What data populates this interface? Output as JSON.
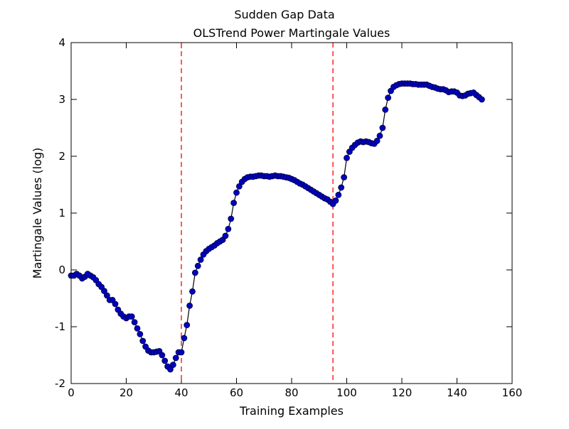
{
  "chart_data": {
    "type": "line",
    "title": "Sudden Gap Data",
    "subtitle": "OLSTrend Power Martingale Values",
    "x_label": "Training Examples",
    "y_label": "Martingale Values (log)",
    "xlim": [
      0,
      160
    ],
    "xticks": [
      0,
      20,
      40,
      60,
      80,
      100,
      120,
      140,
      160
    ],
    "ylim": [
      -2,
      4
    ],
    "yticks": [
      -2,
      -1,
      0,
      1,
      2,
      3,
      4
    ],
    "x": [
      0,
      1,
      2,
      3,
      4,
      5,
      6,
      7,
      8,
      9,
      10,
      11,
      12,
      13,
      14,
      15,
      16,
      17,
      18,
      19,
      20,
      21,
      22,
      23,
      24,
      25,
      26,
      27,
      28,
      29,
      30,
      31,
      32,
      33,
      34,
      35,
      36,
      37,
      38,
      39,
      40,
      41,
      42,
      43,
      44,
      45,
      46,
      47,
      48,
      49,
      50,
      51,
      52,
      53,
      54,
      55,
      56,
      57,
      58,
      59,
      60,
      61,
      62,
      63,
      64,
      65,
      66,
      67,
      68,
      69,
      70,
      71,
      72,
      73,
      74,
      75,
      76,
      77,
      78,
      79,
      80,
      81,
      82,
      83,
      84,
      85,
      86,
      87,
      88,
      89,
      90,
      91,
      92,
      93,
      94,
      95,
      96,
      97,
      98,
      99,
      100,
      101,
      102,
      103,
      104,
      105,
      106,
      107,
      108,
      109,
      110,
      111,
      112,
      113,
      114,
      115,
      116,
      117,
      118,
      119,
      120,
      121,
      122,
      123,
      124,
      125,
      126,
      127,
      128,
      129,
      130,
      131,
      132,
      133,
      134,
      135,
      136,
      137,
      138,
      139,
      140,
      141,
      142,
      143,
      144,
      145,
      146,
      147,
      148,
      149
    ],
    "series": [
      {
        "line_color": "#000000",
        "color": "#0000bf",
        "edge_color": "#00003f",
        "values": [
          -0.1,
          -0.1,
          -0.07,
          -0.1,
          -0.15,
          -0.12,
          -0.07,
          -0.1,
          -0.13,
          -0.18,
          -0.25,
          -0.3,
          -0.37,
          -0.45,
          -0.53,
          -0.53,
          -0.6,
          -0.7,
          -0.77,
          -0.82,
          -0.85,
          -0.82,
          -0.82,
          -0.92,
          -1.03,
          -1.13,
          -1.25,
          -1.35,
          -1.42,
          -1.45,
          -1.45,
          -1.44,
          -1.43,
          -1.5,
          -1.6,
          -1.7,
          -1.75,
          -1.67,
          -1.55,
          -1.45,
          -1.45,
          -1.2,
          -0.97,
          -0.63,
          -0.38,
          -0.05,
          0.07,
          0.18,
          0.27,
          0.33,
          0.37,
          0.4,
          0.43,
          0.47,
          0.5,
          0.53,
          0.6,
          0.72,
          0.9,
          1.18,
          1.36,
          1.47,
          1.55,
          1.6,
          1.63,
          1.64,
          1.64,
          1.65,
          1.66,
          1.66,
          1.65,
          1.65,
          1.64,
          1.65,
          1.66,
          1.65,
          1.65,
          1.64,
          1.63,
          1.62,
          1.6,
          1.58,
          1.55,
          1.52,
          1.5,
          1.47,
          1.44,
          1.41,
          1.38,
          1.35,
          1.32,
          1.29,
          1.26,
          1.24,
          1.2,
          1.16,
          1.22,
          1.32,
          1.45,
          1.63,
          1.97,
          2.08,
          2.15,
          2.2,
          2.24,
          2.26,
          2.25,
          2.26,
          2.25,
          2.23,
          2.22,
          2.27,
          2.36,
          2.5,
          2.82,
          3.03,
          3.15,
          3.22,
          3.25,
          3.27,
          3.28,
          3.28,
          3.28,
          3.28,
          3.27,
          3.27,
          3.26,
          3.26,
          3.26,
          3.26,
          3.24,
          3.22,
          3.21,
          3.19,
          3.18,
          3.18,
          3.16,
          3.13,
          3.14,
          3.14,
          3.12,
          3.07,
          3.06,
          3.07,
          3.1,
          3.11,
          3.12,
          3.08,
          3.04,
          3.0
        ]
      }
    ],
    "vlines": [
      40,
      95
    ],
    "vline_color": "#ff0000"
  }
}
